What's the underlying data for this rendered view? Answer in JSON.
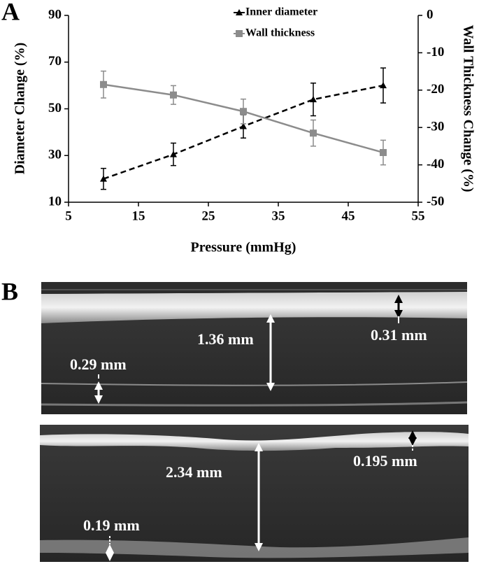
{
  "panel_labels": [
    "A",
    "B"
  ],
  "chart_data": {
    "type": "line",
    "x_label": "Pressure (mmHg)",
    "y_label": "Diameter Change (%)",
    "y2_label": "Wall Thickness Change (%)",
    "x": [
      10,
      20,
      30,
      40,
      50
    ],
    "series": [
      {
        "name": "Inner diameter",
        "color": "#000000",
        "line_style": "dashed",
        "marker": "triangle",
        "values": [
          20,
          30.5,
          42.5,
          54,
          60
        ],
        "errors": [
          4.5,
          4.8,
          5,
          7,
          7.5
        ]
      },
      {
        "name": "Wall thickness",
        "color": "#8c8c8c",
        "line_style": "solid",
        "marker": "square",
        "axis": "y2",
        "values": [
          -18.5,
          -21.3,
          -25.7,
          -31.5,
          -36.7
        ],
        "errors": [
          3.6,
          2.5,
          3.3,
          3.5,
          3.3
        ]
      }
    ],
    "xlim": [
      5,
      55
    ],
    "xticks": [
      5,
      15,
      25,
      35,
      45,
      55
    ],
    "ylim": [
      10,
      90
    ],
    "yticks": [
      10,
      30,
      50,
      70,
      90
    ],
    "y2lim": [
      -50,
      0
    ],
    "y2ticks": [
      0,
      -10,
      -20,
      -30,
      -40,
      -50
    ],
    "legend": "top"
  },
  "images": [
    {
      "annotations": [
        "1.36 mm",
        "0.31 mm",
        "0.29 mm"
      ]
    },
    {
      "annotations": [
        "2.34 mm",
        "0.195 mm",
        "0.19 mm"
      ]
    }
  ]
}
